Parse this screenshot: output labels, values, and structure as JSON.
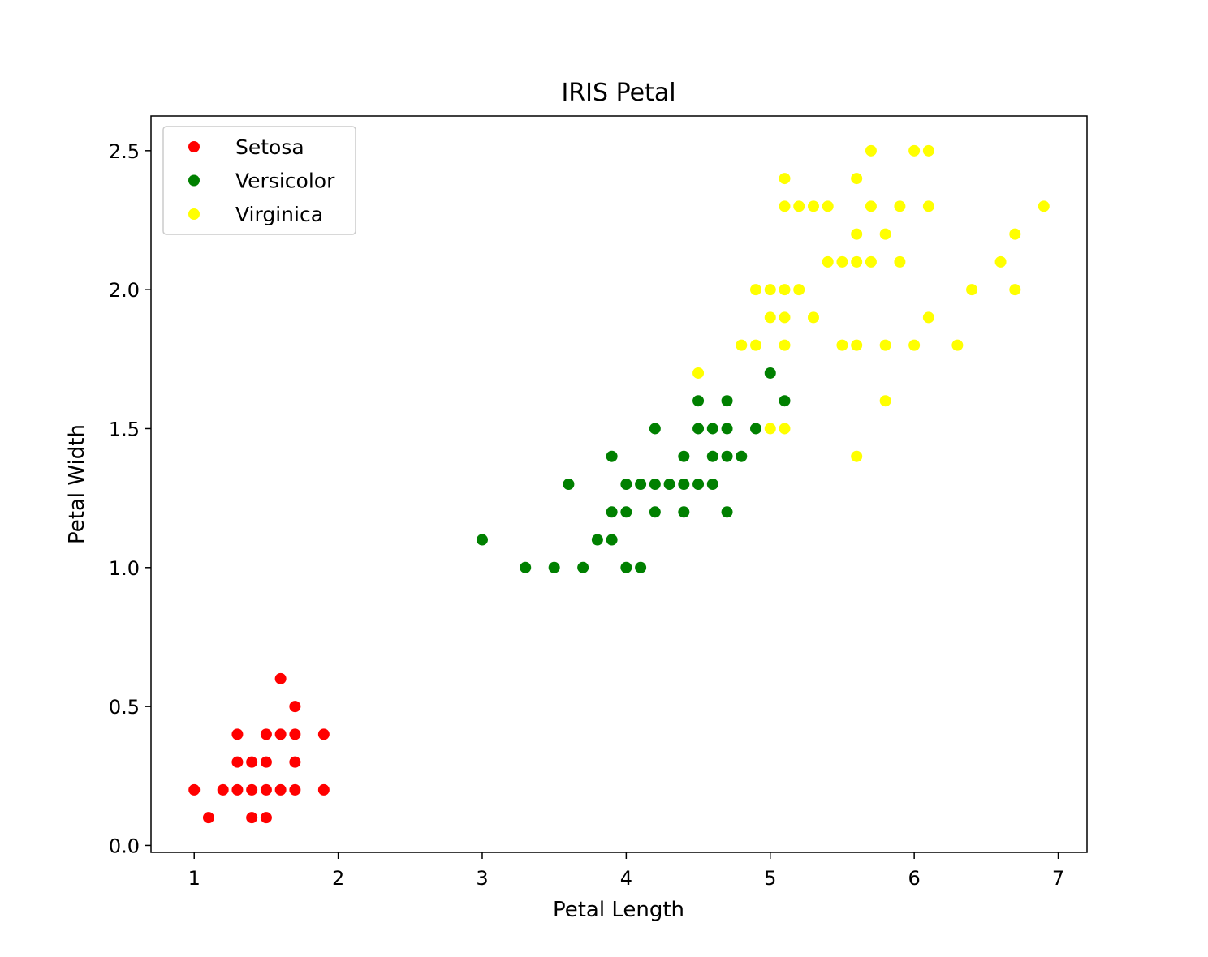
{
  "chart_data": {
    "type": "scatter",
    "title": "IRIS Petal",
    "xlabel": "Petal Length",
    "ylabel": "Petal Width",
    "xlim": [
      0.7,
      7.2
    ],
    "ylim": [
      -0.025,
      2.625
    ],
    "xticks": [
      1,
      2,
      3,
      4,
      5,
      6,
      7
    ],
    "xtick_labels": [
      "1",
      "2",
      "3",
      "4",
      "5",
      "6",
      "7"
    ],
    "yticks": [
      0.0,
      0.5,
      1.0,
      1.5,
      2.0,
      2.5
    ],
    "ytick_labels": [
      "0.0",
      "0.5",
      "1.0",
      "1.5",
      "2.0",
      "2.5"
    ],
    "grid": false,
    "legend_position": "top-left",
    "series": [
      {
        "name": "Setosa",
        "color": "#ff0000",
        "points": [
          [
            1.0,
            0.2
          ],
          [
            1.1,
            0.1
          ],
          [
            1.2,
            0.2
          ],
          [
            1.3,
            0.2
          ],
          [
            1.3,
            0.3
          ],
          [
            1.3,
            0.4
          ],
          [
            1.4,
            0.1
          ],
          [
            1.4,
            0.2
          ],
          [
            1.4,
            0.3
          ],
          [
            1.5,
            0.1
          ],
          [
            1.5,
            0.2
          ],
          [
            1.5,
            0.3
          ],
          [
            1.5,
            0.4
          ],
          [
            1.6,
            0.2
          ],
          [
            1.6,
            0.4
          ],
          [
            1.6,
            0.6
          ],
          [
            1.7,
            0.2
          ],
          [
            1.7,
            0.3
          ],
          [
            1.7,
            0.4
          ],
          [
            1.7,
            0.5
          ],
          [
            1.9,
            0.2
          ],
          [
            1.9,
            0.4
          ]
        ]
      },
      {
        "name": "Versicolor",
        "color": "#008000",
        "points": [
          [
            3.0,
            1.1
          ],
          [
            3.3,
            1.0
          ],
          [
            3.5,
            1.0
          ],
          [
            3.6,
            1.3
          ],
          [
            3.7,
            1.0
          ],
          [
            3.8,
            1.1
          ],
          [
            3.9,
            1.1
          ],
          [
            3.9,
            1.2
          ],
          [
            3.9,
            1.4
          ],
          [
            4.0,
            1.0
          ],
          [
            4.0,
            1.2
          ],
          [
            4.0,
            1.3
          ],
          [
            4.1,
            1.0
          ],
          [
            4.1,
            1.3
          ],
          [
            4.2,
            1.2
          ],
          [
            4.2,
            1.3
          ],
          [
            4.2,
            1.5
          ],
          [
            4.3,
            1.3
          ],
          [
            4.4,
            1.2
          ],
          [
            4.4,
            1.3
          ],
          [
            4.4,
            1.4
          ],
          [
            4.5,
            1.3
          ],
          [
            4.5,
            1.5
          ],
          [
            4.5,
            1.6
          ],
          [
            4.6,
            1.3
          ],
          [
            4.6,
            1.4
          ],
          [
            4.6,
            1.5
          ],
          [
            4.7,
            1.2
          ],
          [
            4.7,
            1.4
          ],
          [
            4.7,
            1.5
          ],
          [
            4.7,
            1.6
          ],
          [
            4.8,
            1.4
          ],
          [
            4.9,
            1.5
          ],
          [
            5.0,
            1.7
          ],
          [
            5.1,
            1.6
          ]
        ]
      },
      {
        "name": "Virginica",
        "color": "#ffff00",
        "points": [
          [
            4.5,
            1.7
          ],
          [
            4.8,
            1.8
          ],
          [
            4.9,
            1.8
          ],
          [
            4.9,
            2.0
          ],
          [
            5.0,
            1.5
          ],
          [
            5.0,
            1.9
          ],
          [
            5.0,
            2.0
          ],
          [
            5.1,
            1.5
          ],
          [
            5.1,
            1.8
          ],
          [
            5.1,
            1.9
          ],
          [
            5.1,
            2.0
          ],
          [
            5.1,
            2.3
          ],
          [
            5.1,
            2.4
          ],
          [
            5.2,
            2.0
          ],
          [
            5.2,
            2.3
          ],
          [
            5.3,
            1.9
          ],
          [
            5.3,
            2.3
          ],
          [
            5.4,
            2.1
          ],
          [
            5.4,
            2.3
          ],
          [
            5.5,
            1.8
          ],
          [
            5.5,
            2.1
          ],
          [
            5.6,
            1.4
          ],
          [
            5.6,
            1.8
          ],
          [
            5.6,
            2.1
          ],
          [
            5.6,
            2.2
          ],
          [
            5.6,
            2.4
          ],
          [
            5.7,
            2.1
          ],
          [
            5.7,
            2.3
          ],
          [
            5.7,
            2.5
          ],
          [
            5.8,
            1.6
          ],
          [
            5.8,
            1.8
          ],
          [
            5.8,
            2.2
          ],
          [
            5.9,
            2.1
          ],
          [
            5.9,
            2.3
          ],
          [
            6.0,
            1.8
          ],
          [
            6.0,
            2.5
          ],
          [
            6.1,
            1.9
          ],
          [
            6.1,
            2.3
          ],
          [
            6.1,
            2.5
          ],
          [
            6.3,
            1.8
          ],
          [
            6.4,
            2.0
          ],
          [
            6.6,
            2.1
          ],
          [
            6.7,
            2.0
          ],
          [
            6.7,
            2.2
          ],
          [
            6.9,
            2.3
          ]
        ]
      }
    ]
  }
}
